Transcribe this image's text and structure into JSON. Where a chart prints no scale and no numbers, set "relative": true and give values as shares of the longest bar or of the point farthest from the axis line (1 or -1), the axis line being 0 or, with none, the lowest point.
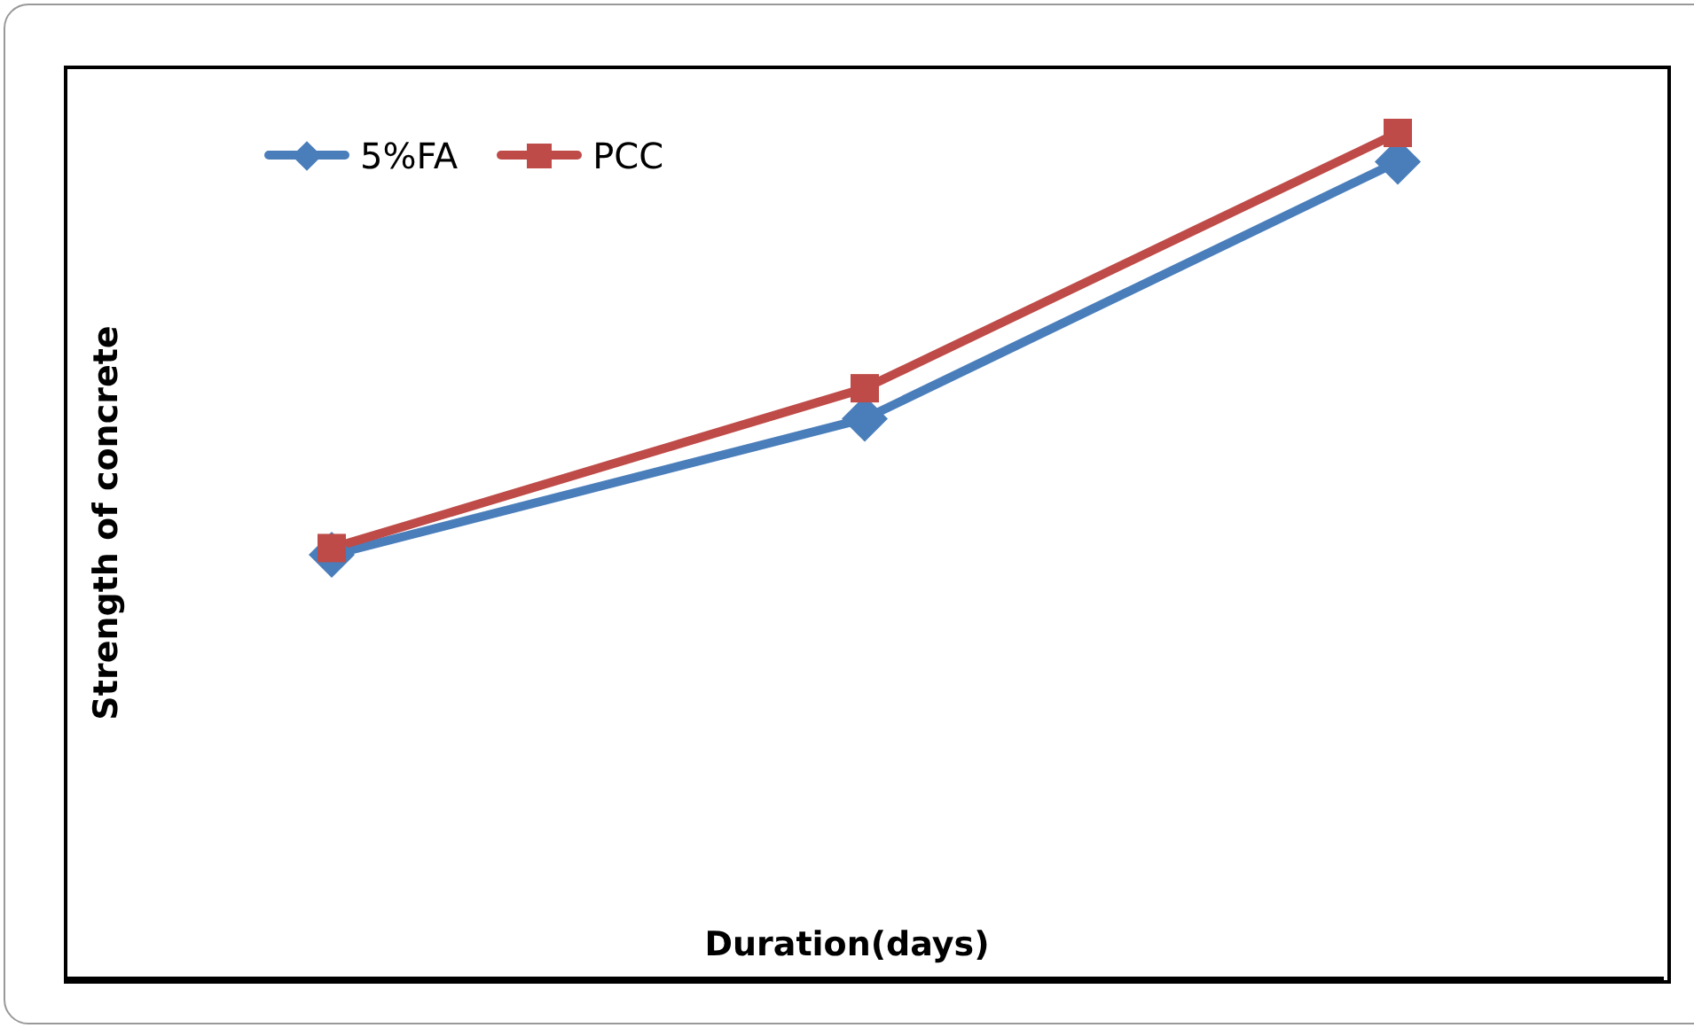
{
  "chart_data": {
    "type": "line",
    "relative": true,
    "xlabel": "Duration(days)",
    "ylabel": "Strength of concrete",
    "categories": [
      null,
      null,
      null
    ],
    "legend": "top left",
    "series": [
      {
        "name": "5%FA",
        "color": "#4a7ebb",
        "marker": "diamond",
        "values": [
          0.501,
          0.662,
          0.966
        ]
      },
      {
        "name": "PCC",
        "color": "#be4b48",
        "marker": "square",
        "values": [
          0.509,
          0.698,
          1
        ]
      }
    ]
  }
}
